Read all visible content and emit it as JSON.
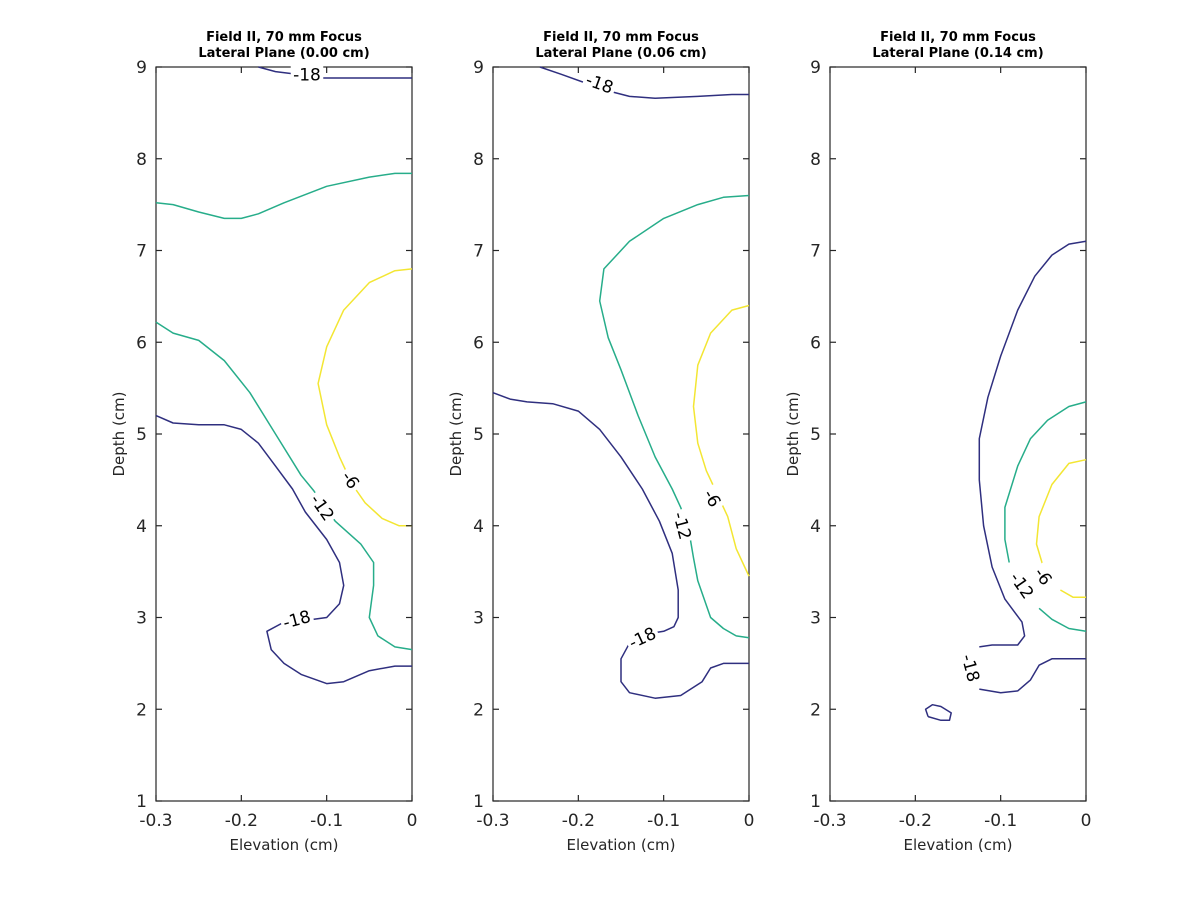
{
  "chart_data": [
    {
      "type": "contour",
      "title": [
        "Field II, 70 mm Focus",
        "Lateral Plane (0.00 cm)"
      ],
      "xlabel": "Elevation (cm)",
      "ylabel": "Depth (cm)",
      "xlim": [
        -0.3,
        0
      ],
      "ylim": [
        1,
        9
      ],
      "xticks": [
        -0.3,
        -0.2,
        -0.1,
        0
      ],
      "xtick_labels": [
        "-0.3",
        "-0.2",
        "-0.1",
        "0"
      ],
      "yticks": [
        1,
        2,
        3,
        4,
        5,
        6,
        7,
        8,
        9
      ],
      "ytick_labels": [
        "1",
        "2",
        "3",
        "4",
        "5",
        "6",
        "7",
        "8",
        "9"
      ],
      "series": [
        {
          "level": -18,
          "color": "#2f2f7f",
          "points": [
            [
              -0.18,
              9.0
            ],
            [
              -0.16,
              8.95
            ],
            [
              -0.135,
              8.92
            ],
            [
              -0.105,
              8.88
            ],
            [
              -0.05,
              8.88
            ],
            [
              0,
              8.88
            ]
          ]
        },
        {
          "level": -12,
          "color": "#27ad8a",
          "points": [
            [
              -0.3,
              7.52
            ],
            [
              -0.28,
              7.5
            ],
            [
              -0.25,
              7.42
            ],
            [
              -0.22,
              7.35
            ],
            [
              -0.2,
              7.35
            ],
            [
              -0.18,
              7.4
            ],
            [
              -0.15,
              7.52
            ],
            [
              -0.1,
              7.7
            ],
            [
              -0.05,
              7.8
            ],
            [
              -0.02,
              7.84
            ],
            [
              0,
              7.84
            ]
          ]
        },
        {
          "level": -6,
          "color": "#f3e633",
          "points": [
            [
              0,
              6.8
            ],
            [
              -0.02,
              6.78
            ],
            [
              -0.05,
              6.65
            ],
            [
              -0.08,
              6.35
            ],
            [
              -0.1,
              5.95
            ],
            [
              -0.11,
              5.55
            ],
            [
              -0.1,
              5.1
            ],
            [
              -0.085,
              4.75
            ],
            [
              -0.07,
              4.45
            ],
            [
              -0.055,
              4.25
            ],
            [
              -0.035,
              4.08
            ],
            [
              -0.015,
              4.0
            ],
            [
              0,
              4.0
            ]
          ]
        },
        {
          "level": -12,
          "color": "#27ad8a",
          "points": [
            [
              -0.3,
              6.22
            ],
            [
              -0.28,
              6.1
            ],
            [
              -0.25,
              6.02
            ],
            [
              -0.22,
              5.8
            ],
            [
              -0.19,
              5.45
            ],
            [
              -0.16,
              5.0
            ],
            [
              -0.13,
              4.55
            ],
            [
              -0.115,
              4.38
            ],
            [
              -0.09,
              4.05
            ],
            [
              -0.06,
              3.8
            ],
            [
              -0.045,
              3.6
            ],
            [
              -0.045,
              3.35
            ],
            [
              -0.05,
              3.0
            ],
            [
              -0.04,
              2.8
            ],
            [
              -0.02,
              2.68
            ],
            [
              0,
              2.65
            ]
          ]
        },
        {
          "level": -18,
          "color": "#2f2f7f",
          "points": [
            [
              -0.3,
              5.2
            ],
            [
              -0.28,
              5.12
            ],
            [
              -0.25,
              5.1
            ],
            [
              -0.22,
              5.1
            ],
            [
              -0.2,
              5.05
            ],
            [
              -0.18,
              4.9
            ],
            [
              -0.16,
              4.65
            ],
            [
              -0.14,
              4.4
            ],
            [
              -0.125,
              4.15
            ],
            [
              -0.1,
              3.85
            ],
            [
              -0.085,
              3.6
            ],
            [
              -0.08,
              3.35
            ],
            [
              -0.085,
              3.15
            ],
            [
              -0.1,
              3.0
            ],
            [
              -0.115,
              2.98
            ],
            [
              -0.15,
              2.95
            ],
            [
              -0.17,
              2.85
            ],
            [
              -0.165,
              2.65
            ],
            [
              -0.15,
              2.5
            ],
            [
              -0.13,
              2.38
            ],
            [
              -0.1,
              2.28
            ],
            [
              -0.08,
              2.3
            ],
            [
              -0.05,
              2.42
            ],
            [
              -0.02,
              2.47
            ],
            [
              0,
              2.47
            ]
          ]
        }
      ],
      "labels": [
        {
          "text": "-18",
          "x": -0.123,
          "y": 8.92,
          "angle": 0
        },
        {
          "text": "-6",
          "x": -0.072,
          "y": 4.5,
          "angle": 55
        },
        {
          "text": "-12",
          "x": -0.105,
          "y": 4.2,
          "angle": 55
        },
        {
          "text": "-18",
          "x": -0.135,
          "y": 2.98,
          "angle": -15
        }
      ]
    },
    {
      "type": "contour",
      "title": [
        "Field II, 70 mm Focus",
        "Lateral Plane (0.06 cm)"
      ],
      "xlabel": "Elevation (cm)",
      "ylabel": "Depth (cm)",
      "xlim": [
        -0.3,
        0
      ],
      "ylim": [
        1,
        9
      ],
      "xticks": [
        -0.3,
        -0.2,
        -0.1,
        0
      ],
      "xtick_labels": [
        "-0.3",
        "-0.2",
        "-0.1",
        "0"
      ],
      "yticks": [
        1,
        2,
        3,
        4,
        5,
        6,
        7,
        8,
        9
      ],
      "ytick_labels": [
        "1",
        "2",
        "3",
        "4",
        "5",
        "6",
        "7",
        "8",
        "9"
      ],
      "series": [
        {
          "level": -18,
          "color": "#2f2f7f",
          "points": [
            [
              -0.245,
              9.0
            ],
            [
              -0.22,
              8.92
            ],
            [
              -0.19,
              8.82
            ],
            [
              -0.165,
              8.74
            ],
            [
              -0.14,
              8.68
            ],
            [
              -0.11,
              8.66
            ],
            [
              -0.06,
              8.68
            ],
            [
              -0.02,
              8.7
            ],
            [
              0,
              8.7
            ]
          ]
        },
        {
          "level": -12,
          "color": "#27ad8a",
          "points": [
            [
              0,
              7.6
            ],
            [
              -0.03,
              7.58
            ],
            [
              -0.06,
              7.5
            ],
            [
              -0.1,
              7.35
            ],
            [
              -0.14,
              7.1
            ],
            [
              -0.17,
              6.8
            ],
            [
              -0.175,
              6.45
            ],
            [
              -0.165,
              6.05
            ],
            [
              -0.15,
              5.7
            ],
            [
              -0.13,
              5.2
            ],
            [
              -0.11,
              4.75
            ],
            [
              -0.09,
              4.4
            ],
            [
              -0.08,
              4.2
            ],
            [
              -0.07,
              3.92
            ],
            [
              -0.065,
              3.65
            ],
            [
              -0.06,
              3.4
            ],
            [
              -0.045,
              3.0
            ],
            [
              -0.03,
              2.88
            ],
            [
              -0.015,
              2.8
            ],
            [
              0,
              2.78
            ]
          ]
        },
        {
          "level": -6,
          "color": "#f3e633",
          "points": [
            [
              0,
              6.4
            ],
            [
              -0.02,
              6.35
            ],
            [
              -0.045,
              6.1
            ],
            [
              -0.06,
              5.75
            ],
            [
              -0.065,
              5.3
            ],
            [
              -0.06,
              4.9
            ],
            [
              -0.05,
              4.6
            ],
            [
              -0.04,
              4.4
            ],
            [
              -0.025,
              4.1
            ],
            [
              -0.015,
              3.75
            ],
            [
              -0.005,
              3.55
            ],
            [
              0,
              3.45
            ]
          ]
        },
        {
          "level": -18,
          "color": "#2f2f7f",
          "points": [
            [
              -0.3,
              5.45
            ],
            [
              -0.28,
              5.38
            ],
            [
              -0.26,
              5.35
            ],
            [
              -0.23,
              5.33
            ],
            [
              -0.2,
              5.25
            ],
            [
              -0.175,
              5.05
            ],
            [
              -0.15,
              4.75
            ],
            [
              -0.125,
              4.4
            ],
            [
              -0.105,
              4.05
            ],
            [
              -0.09,
              3.7
            ],
            [
              -0.083,
              3.3
            ],
            [
              -0.083,
              3.0
            ],
            [
              -0.088,
              2.9
            ],
            [
              -0.1,
              2.85
            ],
            [
              -0.12,
              2.82
            ],
            [
              -0.14,
              2.72
            ],
            [
              -0.15,
              2.55
            ],
            [
              -0.15,
              2.3
            ],
            [
              -0.14,
              2.18
            ],
            [
              -0.11,
              2.12
            ],
            [
              -0.08,
              2.15
            ],
            [
              -0.055,
              2.3
            ],
            [
              -0.045,
              2.45
            ],
            [
              -0.03,
              2.5
            ],
            [
              0,
              2.5
            ]
          ]
        }
      ],
      "labels": [
        {
          "text": "-18",
          "x": -0.175,
          "y": 8.82,
          "angle": 20
        },
        {
          "text": "-6",
          "x": -0.043,
          "y": 4.3,
          "angle": 60
        },
        {
          "text": "-12",
          "x": -0.078,
          "y": 4.0,
          "angle": 75
        },
        {
          "text": "-18",
          "x": -0.125,
          "y": 2.78,
          "angle": -25
        }
      ]
    },
    {
      "type": "contour",
      "title": [
        "Field II, 70 mm Focus",
        "Lateral Plane (0.14 cm)"
      ],
      "xlabel": "Elevation (cm)",
      "ylabel": "Depth (cm)",
      "xlim": [
        -0.3,
        0
      ],
      "ylim": [
        1,
        9
      ],
      "xticks": [
        -0.3,
        -0.2,
        -0.1,
        0
      ],
      "xtick_labels": [
        "-0.3",
        "-0.2",
        "-0.1",
        "0"
      ],
      "yticks": [
        1,
        2,
        3,
        4,
        5,
        6,
        7,
        8,
        9
      ],
      "ytick_labels": [
        "1",
        "2",
        "3",
        "4",
        "5",
        "6",
        "7",
        "8",
        "9"
      ],
      "series": [
        {
          "level": -18,
          "color": "#2f2f7f",
          "points": [
            [
              0,
              7.1
            ],
            [
              -0.02,
              7.07
            ],
            [
              -0.04,
              6.95
            ],
            [
              -0.06,
              6.72
            ],
            [
              -0.08,
              6.35
            ],
            [
              -0.1,
              5.85
            ],
            [
              -0.115,
              5.4
            ],
            [
              -0.125,
              4.95
            ],
            [
              -0.125,
              4.5
            ],
            [
              -0.12,
              4.0
            ],
            [
              -0.11,
              3.55
            ],
            [
              -0.095,
              3.2
            ],
            [
              -0.075,
              2.95
            ],
            [
              -0.072,
              2.8
            ],
            [
              -0.08,
              2.7
            ],
            [
              -0.11,
              2.7
            ],
            [
              -0.125,
              2.68
            ]
          ]
        },
        {
          "level": -18,
          "color": "#2f2f7f",
          "points": [
            [
              -0.125,
              2.22
            ],
            [
              -0.1,
              2.18
            ],
            [
              -0.08,
              2.2
            ],
            [
              -0.065,
              2.32
            ],
            [
              -0.055,
              2.48
            ],
            [
              -0.04,
              2.55
            ],
            [
              -0.02,
              2.55
            ],
            [
              0,
              2.55
            ]
          ]
        },
        {
          "level": -12,
          "color": "#27ad8a",
          "points": [
            [
              0,
              5.35
            ],
            [
              -0.02,
              5.3
            ],
            [
              -0.045,
              5.15
            ],
            [
              -0.065,
              4.95
            ],
            [
              -0.08,
              4.65
            ],
            [
              -0.095,
              4.2
            ],
            [
              -0.095,
              3.85
            ],
            [
              -0.09,
              3.6
            ]
          ]
        },
        {
          "level": -12,
          "color": "#27ad8a",
          "points": [
            [
              -0.055,
              3.1
            ],
            [
              -0.04,
              2.98
            ],
            [
              -0.02,
              2.88
            ],
            [
              0,
              2.85
            ]
          ]
        },
        {
          "level": -6,
          "color": "#f3e633",
          "points": [
            [
              0,
              4.72
            ],
            [
              -0.02,
              4.68
            ],
            [
              -0.04,
              4.45
            ],
            [
              -0.055,
              4.1
            ],
            [
              -0.058,
              3.8
            ],
            [
              -0.05,
              3.55
            ]
          ]
        },
        {
          "level": -6,
          "color": "#f3e633",
          "points": [
            [
              -0.03,
              3.3
            ],
            [
              -0.015,
              3.22
            ],
            [
              0,
              3.22
            ]
          ]
        },
        {
          "level": -18,
          "color": "#2f2f7f",
          "points": [
            [
              -0.185,
              1.92
            ],
            [
              -0.17,
              1.88
            ],
            [
              -0.16,
              1.88
            ],
            [
              -0.158,
              1.96
            ],
            [
              -0.17,
              2.03
            ],
            [
              -0.18,
              2.05
            ],
            [
              -0.188,
              2.0
            ],
            [
              -0.185,
              1.92
            ]
          ]
        }
      ],
      "labels": [
        {
          "text": "-6",
          "x": -0.05,
          "y": 3.45,
          "angle": 55
        },
        {
          "text": "-12",
          "x": -0.075,
          "y": 3.35,
          "angle": 55
        },
        {
          "text": "-18",
          "x": -0.135,
          "y": 2.45,
          "angle": 75
        }
      ]
    }
  ]
}
